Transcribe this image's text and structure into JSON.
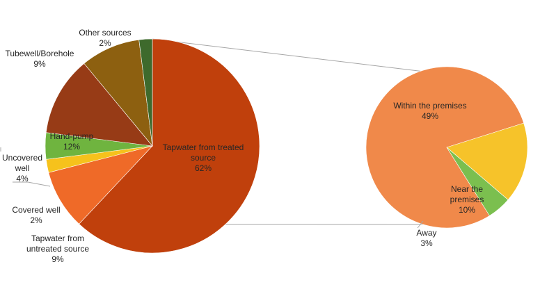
{
  "chart_data": {
    "type": "pie",
    "title": "",
    "main_pie": {
      "slices": [
        {
          "label": "Tapwater from treated source",
          "value": 62,
          "value_label": "62%",
          "color": "#c0400c"
        },
        {
          "label": "Tapwater from untreated source",
          "value": 9,
          "value_label": "9%",
          "color": "#ef6a28"
        },
        {
          "label": "Covered well",
          "value": 2,
          "value_label": "2%",
          "color": "#f6c21c"
        },
        {
          "label": "Uncovered well",
          "value": 4,
          "value_label": "4%",
          "color": "#6fb43f"
        },
        {
          "label": "Hand-pump",
          "value": 12,
          "value_label": "12%",
          "color": "#973b16"
        },
        {
          "label": "Tubewell/Borehole",
          "value": 9,
          "value_label": "9%",
          "color": "#8d6010"
        },
        {
          "label": "Other sources",
          "value": 2,
          "value_label": "2%",
          "color": "#3e6a2c"
        }
      ]
    },
    "breakout_pie": {
      "parent_slice": "Tapwater from treated source",
      "slices": [
        {
          "label": "Within the premises",
          "value": 49,
          "value_label": "49%",
          "color": "#f0894a"
        },
        {
          "label": "Near the premises",
          "value": 10,
          "value_label": "10%",
          "color": "#f6c32a"
        },
        {
          "label": "Away",
          "value": 3,
          "value_label": "3%",
          "color": "#7bbf4f"
        }
      ]
    }
  }
}
